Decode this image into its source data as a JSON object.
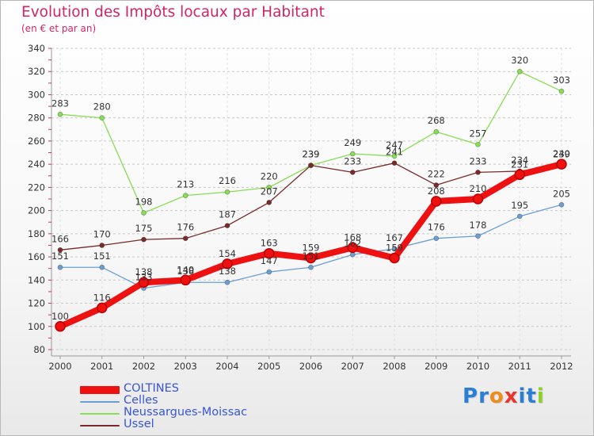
{
  "title": "Evolution des Impôts locaux par Habitant",
  "subtitle": "(en € et par an)",
  "logo": "Proxiti",
  "colors": {
    "title": "#d1246a",
    "grid": "#c8c8c8",
    "axis_ticks": "#cc3366"
  },
  "chart_data": {
    "type": "line",
    "title": "Evolution des Impôts locaux par Habitant",
    "subtitle": "(en € et par an)",
    "x": [
      "2000",
      "2001",
      "2002",
      "2003",
      "2004",
      "2005",
      "2006",
      "2007",
      "2008",
      "2009",
      "2010",
      "2011",
      "2012"
    ],
    "y_ticks": [
      80,
      100,
      120,
      140,
      160,
      180,
      200,
      220,
      240,
      260,
      280,
      300,
      320,
      340
    ],
    "ylim": [
      80,
      340
    ],
    "grid": "horizontal dashed",
    "legend_placement": "bottom-left",
    "series": [
      {
        "name": "COLTINES",
        "color": "#ee1111",
        "values": [
          100,
          116,
          138,
          140,
          154,
          163,
          159,
          168,
          159,
          208,
          210,
          231,
          240
        ],
        "labels": [
          "100",
          "116",
          "138",
          "140",
          "154",
          "163",
          "159",
          "168",
          "159",
          "208",
          "210",
          "231",
          "240"
        ]
      },
      {
        "name": "Celles",
        "color": "#6b9fd4",
        "values": [
          151,
          151,
          133,
          138,
          138,
          147,
          151,
          162,
          167,
          176,
          178,
          195,
          205
        ],
        "labels": [
          "151",
          "151",
          "133",
          "138",
          "138",
          "147",
          "151",
          "162",
          "167",
          "176",
          "178",
          "195",
          "205"
        ]
      },
      {
        "name": "Neussargues-Moissac",
        "color": "#88dd55",
        "values": [
          283,
          280,
          198,
          213,
          216,
          220,
          239,
          249,
          247,
          268,
          257,
          320,
          303
        ],
        "labels": [
          "283",
          "280",
          "198",
          "213",
          "216",
          "220",
          "239",
          "249",
          "247",
          "268",
          "257",
          "320",
          "303"
        ]
      },
      {
        "name": "Ussel",
        "color": "#7a2a2a",
        "values": [
          166,
          170,
          175,
          176,
          187,
          207,
          239,
          233,
          241,
          222,
          233,
          234,
          239
        ],
        "labels": [
          "166",
          "170",
          "175",
          "176",
          "187",
          "207",
          "239",
          "233",
          "241",
          "222",
          "233",
          "234",
          "239"
        ]
      }
    ]
  }
}
